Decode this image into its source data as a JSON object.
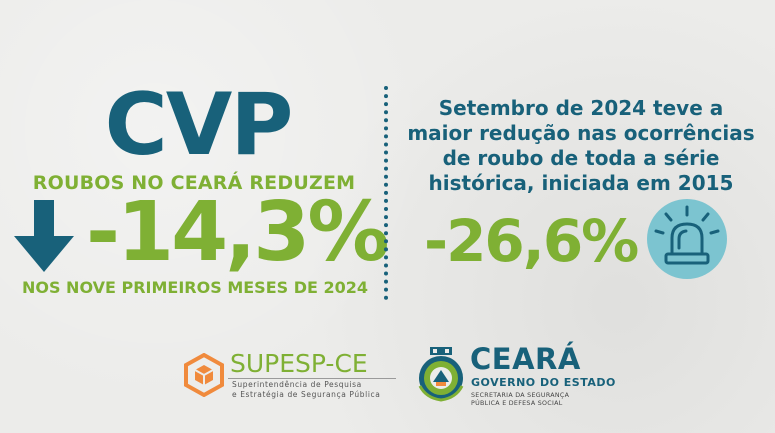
{
  "left": {
    "title": "CVP",
    "headline": "ROUBOS NO CEARÁ REDUZEM",
    "arrow_icon": "arrow-down-icon",
    "percent": "-14,3%",
    "footnote": "NOS NOVE PRIMEIROS MESES DE 2024"
  },
  "right": {
    "lines": [
      "Setembro de 2024 teve a",
      "maior redução nas ocorrências",
      "de roubo de toda a série",
      "histórica, iniciada em 2015"
    ],
    "percent": "-26,6%",
    "siren_icon": "siren-icon"
  },
  "footer": {
    "supesp": {
      "name": "SUPESP-CE",
      "subtitle_1": "Superintendência de Pesquisa",
      "subtitle_2": "e Estratégia de Segurança Pública"
    },
    "ceara": {
      "name": "CEARÁ",
      "subtitle": "GOVERNO DO ESTADO",
      "small_1": "SECRETARIA DA SEGURANÇA",
      "small_2": "PÚBLICA E DEFESA SOCIAL"
    }
  },
  "colors": {
    "blue": "#18617a",
    "green": "#7fb034",
    "teal": "#7cc4d0",
    "orange": "#f08a3c"
  }
}
